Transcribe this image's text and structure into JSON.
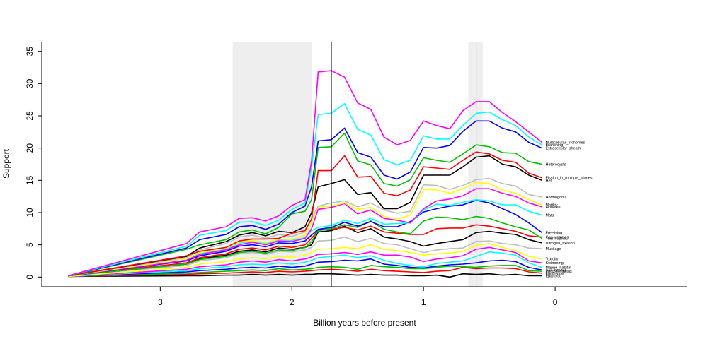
{
  "chart_data": {
    "type": "line",
    "xlabel": "Billion years before present",
    "ylabel": "Support",
    "xlim": [
      3.9,
      -1.0
    ],
    "ylim": [
      -1.5,
      36.5
    ],
    "x_ticks": [
      3,
      2,
      1,
      0
    ],
    "y_ticks": [
      0,
      5,
      10,
      15,
      20,
      25,
      30,
      35
    ],
    "shaded_intervals": [
      [
        2.45,
        1.85
      ],
      [
        0.66,
        0.55
      ]
    ],
    "vertical_lines": [
      1.7,
      0.6
    ],
    "colors": {
      "magenta": "#ff00ff",
      "cyan": "#00ffff",
      "blue": "#0000ff",
      "green": "#00c000",
      "red": "#ff0000",
      "black": "#000000",
      "gray": "#bebebe",
      "yellow": "#ffff00",
      "shade": "#eeeeee"
    },
    "x": [
      3.7,
      2.8,
      2.7,
      2.5,
      2.4,
      2.3,
      2.2,
      2.1,
      2.0,
      1.9,
      1.85,
      1.8,
      1.7,
      1.6,
      1.5,
      1.4,
      1.3,
      1.2,
      1.1,
      1.0,
      0.9,
      0.8,
      0.7,
      0.6,
      0.5,
      0.4,
      0.3,
      0.2,
      0.1
    ],
    "series": [
      {
        "label": "Multicellular_trichomes",
        "color": "magenta",
        "values": [
          0.2,
          5.2,
          7.0,
          7.8,
          9.1,
          9.2,
          8.7,
          9.5,
          11.1,
          12.0,
          18.0,
          31.8,
          32.0,
          31.0,
          27.0,
          26.0,
          21.7,
          20.5,
          21.2,
          24.2,
          23.5,
          23.0,
          25.8,
          27.2,
          27.2,
          25.5,
          24.1,
          22.5,
          20.9
        ]
      },
      {
        "label": "Branching",
        "color": "cyan",
        "values": [
          0.2,
          4.8,
          6.5,
          7.2,
          8.5,
          8.6,
          8.0,
          8.8,
          10.5,
          11.5,
          17.0,
          25.2,
          25.4,
          26.9,
          22.9,
          22.0,
          18.2,
          17.4,
          18.1,
          21.9,
          21.4,
          21.4,
          23.5,
          25.4,
          25.6,
          24.4,
          23.5,
          21.7,
          20.5
        ]
      },
      {
        "label": "Extracellular_sheath",
        "color": "blue",
        "values": [
          0.2,
          4.5,
          5.8,
          6.6,
          7.8,
          8.0,
          7.4,
          8.2,
          10.0,
          11.0,
          14.0,
          21.1,
          21.3,
          23.1,
          19.3,
          18.6,
          15.8,
          15.2,
          16.3,
          20.1,
          20.0,
          20.4,
          22.6,
          24.2,
          24.2,
          23.1,
          22.5,
          20.9,
          20.0
        ]
      },
      {
        "label": "Heterocysts",
        "color": "green",
        "values": [
          0.2,
          4.3,
          5.0,
          5.8,
          7.0,
          7.3,
          6.7,
          7.7,
          9.8,
          10.2,
          12.0,
          20.1,
          20.2,
          22.3,
          18.0,
          17.4,
          14.5,
          14.1,
          15.1,
          18.5,
          18.1,
          17.8,
          19.1,
          20.5,
          20.2,
          19.3,
          19.2,
          17.9,
          17.5
        ]
      },
      {
        "label": "Fission_in_multiple_planes",
        "color": "red",
        "values": [
          0.2,
          3.3,
          4.0,
          4.6,
          5.6,
          5.9,
          5.9,
          6.0,
          6.8,
          7.2,
          9.0,
          16.5,
          16.5,
          18.8,
          15.5,
          15.6,
          13.0,
          12.6,
          13.5,
          17.1,
          16.9,
          16.7,
          18.1,
          19.4,
          19.1,
          18.1,
          17.8,
          16.1,
          15.4
        ]
      },
      {
        "label": "Hetl",
        "color": "black",
        "values": [
          0.2,
          3.2,
          4.5,
          5.5,
          6.5,
          6.9,
          6.4,
          7.1,
          6.9,
          7.8,
          10.0,
          14.0,
          14.5,
          15.1,
          12.8,
          13.1,
          10.6,
          10.6,
          11.6,
          15.8,
          15.8,
          15.8,
          17.1,
          18.6,
          18.8,
          17.5,
          17.1,
          15.8,
          15.0
        ]
      },
      {
        "label": "Hormogonia",
        "color": "gray",
        "values": [
          0.2,
          3.0,
          4.2,
          5.2,
          6.2,
          6.5,
          6.0,
          6.6,
          6.3,
          7.0,
          9.0,
          11.0,
          11.5,
          11.8,
          10.9,
          11.5,
          10.4,
          9.9,
          10.2,
          14.3,
          14.2,
          13.6,
          14.2,
          15.1,
          15.3,
          14.5,
          14.1,
          12.8,
          12.4
        ]
      },
      {
        "label": "Motility",
        "color": "yellow",
        "values": [
          0.2,
          2.8,
          3.8,
          4.5,
          5.4,
          5.7,
          5.3,
          5.9,
          5.8,
          6.5,
          8.5,
          10.9,
          11.0,
          11.5,
          10.5,
          10.8,
          9.4,
          9.0,
          9.6,
          13.6,
          13.5,
          13.0,
          13.7,
          14.7,
          14.5,
          13.5,
          13.0,
          12.0,
          11.2
        ]
      },
      {
        "label": "Akinetes",
        "color": "magenta",
        "values": [
          0.2,
          2.6,
          3.5,
          4.2,
          5.0,
          5.4,
          5.0,
          5.6,
          5.5,
          6.0,
          7.5,
          10.5,
          10.8,
          11.4,
          9.8,
          10.4,
          9.1,
          8.8,
          8.4,
          10.6,
          11.8,
          12.1,
          12.6,
          13.7,
          13.7,
          13.0,
          12.5,
          11.5,
          10.9
        ]
      },
      {
        "label": "Mats",
        "color": "cyan",
        "values": [
          0.2,
          2.7,
          3.6,
          4.3,
          5.3,
          5.5,
          5.2,
          5.8,
          5.7,
          6.1,
          7.2,
          7.7,
          8.0,
          8.8,
          8.3,
          9.1,
          8.2,
          8.3,
          8.4,
          10.4,
          11.3,
          11.1,
          11.6,
          12.0,
          11.8,
          11.2,
          11.2,
          10.2,
          9.6
        ]
      },
      {
        "label": "Freeliving",
        "color": "blue",
        "values": [
          0.2,
          2.5,
          3.3,
          4.0,
          4.8,
          5.0,
          4.7,
          5.3,
          5.2,
          5.6,
          6.5,
          7.4,
          7.7,
          8.5,
          7.9,
          8.6,
          7.8,
          7.8,
          8.6,
          10.1,
          10.6,
          11.0,
          11.2,
          11.9,
          11.5,
          10.6,
          9.7,
          8.4,
          6.9
        ]
      },
      {
        "label": "Thermophilic",
        "color": "green",
        "values": [
          0.2,
          2.0,
          2.7,
          3.2,
          3.8,
          4.0,
          3.7,
          4.2,
          4.1,
          4.6,
          5.5,
          7.2,
          7.5,
          8.1,
          7.7,
          8.7,
          7.4,
          7.0,
          6.7,
          8.7,
          9.3,
          9.2,
          8.9,
          9.4,
          9.1,
          8.4,
          7.8,
          7.3,
          6.0
        ]
      },
      {
        "label": "Gas_vesicles",
        "color": "red",
        "values": [
          0.2,
          2.2,
          3.0,
          3.6,
          4.3,
          4.5,
          4.2,
          4.8,
          4.6,
          5.0,
          6.0,
          7.3,
          7.4,
          7.7,
          7.3,
          7.9,
          7.0,
          6.8,
          6.6,
          6.6,
          7.5,
          7.6,
          7.6,
          8.1,
          7.9,
          7.5,
          7.1,
          6.4,
          6.2
        ]
      },
      {
        "label": "Nitrogen_fixation",
        "color": "black",
        "values": [
          0.2,
          2.0,
          2.8,
          3.4,
          4.0,
          4.2,
          3.9,
          4.5,
          4.3,
          4.6,
          5.0,
          7.0,
          7.2,
          7.9,
          6.9,
          7.5,
          6.2,
          5.9,
          5.5,
          4.8,
          5.2,
          5.5,
          5.8,
          6.9,
          7.1,
          6.8,
          6.6,
          5.8,
          5.3
        ]
      },
      {
        "label": "Mucilage",
        "color": "gray",
        "values": [
          0.2,
          1.8,
          2.5,
          3.0,
          3.6,
          3.8,
          3.5,
          4.0,
          3.9,
          4.2,
          4.6,
          5.6,
          5.7,
          6.2,
          5.5,
          6.0,
          5.2,
          5.0,
          4.4,
          3.8,
          4.2,
          4.4,
          4.5,
          5.5,
          5.6,
          5.2,
          5.0,
          4.5,
          4.4
        ]
      },
      {
        "label": "Toxicity",
        "color": "yellow",
        "values": [
          0.1,
          1.5,
          2.0,
          2.4,
          2.8,
          3.0,
          2.8,
          3.2,
          3.1,
          3.4,
          3.8,
          4.3,
          4.4,
          4.6,
          4.4,
          5.0,
          4.3,
          4.1,
          3.8,
          3.4,
          3.6,
          3.7,
          4.0,
          4.9,
          5.2,
          4.6,
          4.1,
          3.2,
          2.8
        ]
      },
      {
        "label": "Swimming",
        "color": "magenta",
        "values": [
          0.1,
          1.2,
          1.6,
          1.9,
          2.3,
          2.5,
          2.3,
          2.7,
          2.5,
          2.8,
          3.1,
          3.5,
          3.6,
          3.8,
          3.5,
          3.9,
          3.4,
          3.4,
          3.1,
          2.4,
          2.8,
          3.0,
          3.3,
          4.3,
          4.6,
          4.2,
          3.8,
          2.5,
          2.2
        ]
      },
      {
        "label": "Marine_habitat",
        "color": "cyan",
        "values": [
          0.1,
          1.0,
          1.3,
          1.6,
          1.9,
          2.0,
          1.9,
          2.2,
          2.0,
          2.3,
          2.6,
          3.0,
          3.2,
          3.4,
          3.0,
          3.3,
          2.6,
          2.1,
          1.8,
          1.6,
          2.1,
          2.3,
          2.5,
          3.2,
          3.9,
          3.7,
          3.4,
          2.2,
          1.5
        ]
      },
      {
        "label": "Soil_habitat",
        "color": "blue",
        "values": [
          0.1,
          0.8,
          1.0,
          1.2,
          1.4,
          1.5,
          1.4,
          1.7,
          1.5,
          1.7,
          2.0,
          2.3,
          2.4,
          2.6,
          2.5,
          2.8,
          2.0,
          1.8,
          1.5,
          1.4,
          1.7,
          1.9,
          2.0,
          2.2,
          2.5,
          2.6,
          2.4,
          1.5,
          1.1
        ]
      },
      {
        "label": "Photosynthesis",
        "color": "green",
        "values": [
          0.1,
          0.6,
          0.7,
          0.9,
          1.0,
          1.1,
          1.0,
          1.3,
          1.1,
          1.2,
          1.3,
          1.5,
          1.6,
          1.5,
          1.2,
          1.8,
          1.6,
          1.5,
          1.3,
          1.3,
          1.5,
          1.7,
          1.6,
          1.5,
          1.7,
          1.8,
          1.8,
          1.0,
          0.9
        ]
      },
      {
        "label": "Freshwater",
        "color": "red",
        "values": [
          0.1,
          0.4,
          0.5,
          0.6,
          0.7,
          0.8,
          0.7,
          0.9,
          0.8,
          0.9,
          1.0,
          1.1,
          1.2,
          1.1,
          0.9,
          1.2,
          1.0,
          0.9,
          0.8,
          0.7,
          0.9,
          1.0,
          1.5,
          1.3,
          1.4,
          1.4,
          1.3,
          0.8,
          0.6
        ]
      },
      {
        "label": "Epiphytic",
        "color": "black",
        "values": [
          0.1,
          0.2,
          0.2,
          0.3,
          0.3,
          0.4,
          0.3,
          0.4,
          0.3,
          0.4,
          0.4,
          0.5,
          0.5,
          0.4,
          0.3,
          0.4,
          0.3,
          0.3,
          0.2,
          0.2,
          0.3,
          0.0,
          0.5,
          0.4,
          0.5,
          0.3,
          0.4,
          0.2,
          0.2
        ]
      }
    ]
  }
}
